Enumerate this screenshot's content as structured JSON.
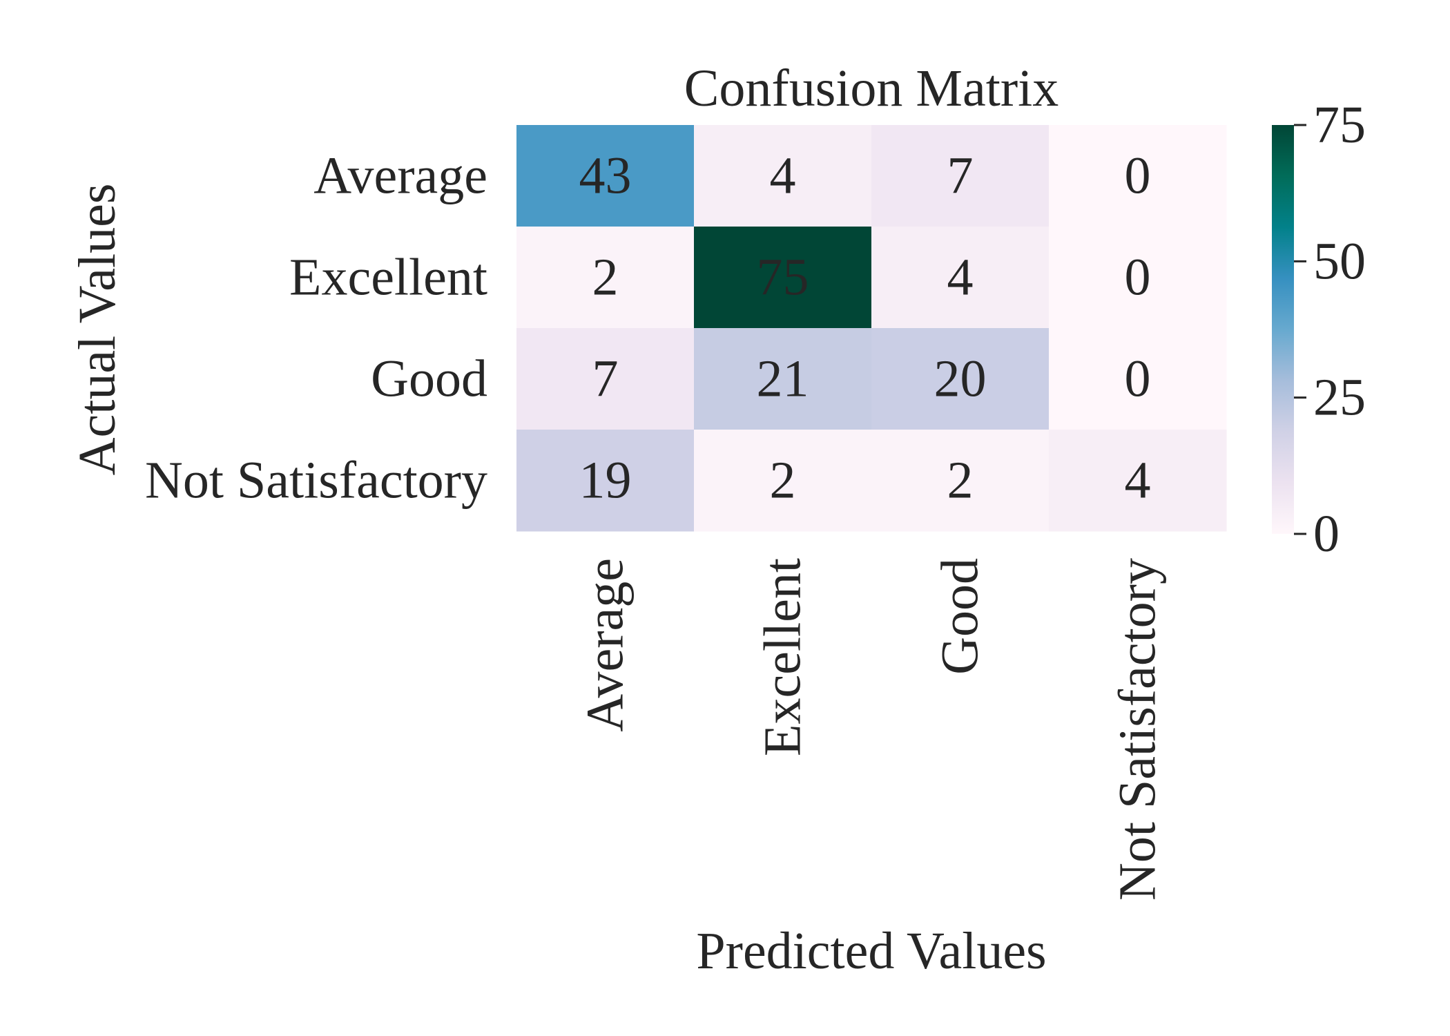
{
  "chart_data": {
    "type": "heatmap",
    "title": "Confusion Matrix",
    "xlabel": "Predicted Values",
    "ylabel": "Actual Values",
    "x_categories": [
      "Average",
      "Excellent",
      "Good",
      "Not Satisfactory"
    ],
    "y_categories": [
      "Average",
      "Excellent",
      "Good",
      "Not Satisfactory"
    ],
    "values": [
      [
        43,
        4,
        7,
        0
      ],
      [
        2,
        75,
        4,
        0
      ],
      [
        7,
        21,
        20,
        0
      ],
      [
        19,
        2,
        2,
        4
      ]
    ],
    "colorbar": {
      "min": 0,
      "max": 75,
      "ticks": [
        0,
        25,
        50,
        75
      ],
      "colormap": "PuBuGn",
      "colors": [
        "#fff7fb",
        "#ece2f0",
        "#d0d1e6",
        "#a6bddb",
        "#67a9cf",
        "#3690c0",
        "#02818a",
        "#016c59",
        "#014636"
      ]
    },
    "annotation_colors": {
      "dark_cell_text": "#ffffff",
      "light_cell_text": "#262626"
    },
    "grid": false
  }
}
